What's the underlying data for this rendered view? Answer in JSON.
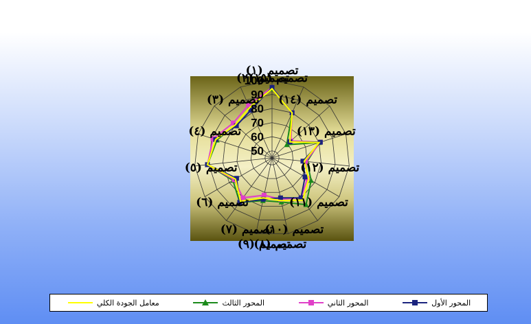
{
  "chart_data": {
    "type": "radar",
    "categories": [
      "تصميم (١)",
      "تصميم (١٥)",
      "تصميم (١٤)",
      "تصميم (١٣)",
      "تصميم (١٢)",
      "تصميم (١١)",
      "تصميم (١٠)",
      "تصميم (٩)",
      "تصميم (٨)",
      "تصميم (٧)",
      "تصميم (٦)",
      "تصميم (٥)",
      "تصميم (٤)",
      "تصميم (٣)",
      "تصميم (٢)"
    ],
    "r_ticks": [
      50,
      60,
      70,
      80,
      90,
      100
    ],
    "r_range": [
      45,
      100
    ],
    "grid": true,
    "legend_position": "bottom",
    "series": [
      {
        "name": "المحور الأول",
        "color": "#1a237e",
        "marker": "square",
        "values": [
          95,
          80,
          62,
          81,
          67,
          72,
          80,
          74,
          75,
          84,
          74,
          91,
          87,
          79,
          82
        ]
      },
      {
        "name": "المحور الثاني",
        "color": "#e040c8",
        "marker": "square",
        "values": [
          95,
          80,
          63,
          81,
          69,
          74,
          80,
          75,
          72,
          80,
          76,
          91,
          89,
          82,
          86
        ]
      },
      {
        "name": "المحور الثالث",
        "color": "#1b8a1b",
        "marker": "triangle",
        "values": [
          94,
          80,
          59,
          80,
          70,
          77,
          86,
          77,
          76,
          84,
          77,
          91,
          86,
          80,
          84
        ]
      },
      {
        "name": "معامل الجودة الكلي",
        "color": "#ffff00",
        "marker": "none",
        "values": [
          94,
          80,
          62,
          80,
          68,
          75,
          82,
          76,
          74,
          83,
          75,
          91,
          87,
          80,
          84
        ]
      }
    ]
  }
}
